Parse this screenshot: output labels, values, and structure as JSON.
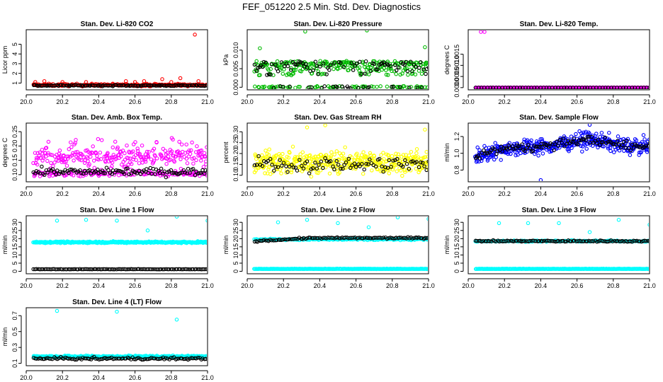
{
  "figure": {
    "title": "FEF_051220  2.5 Min. Std. Dev. Diagnostics"
  },
  "chart_data": [
    {
      "type": "scatter",
      "title": "Stan. Dev. Li-820 CO2",
      "ylabel": "Licor ppm",
      "xlim": [
        20.0,
        21.0
      ],
      "xticks": [
        "20.0",
        "20.2",
        "20.4",
        "20.6",
        "20.8",
        "21.0"
      ],
      "ylim": [
        0.3,
        6.5
      ],
      "yticks": [
        {
          "v": 1,
          "label": "1"
        },
        {
          "v": 2,
          "label": "2"
        },
        {
          "v": 3,
          "label": "3"
        },
        {
          "v": 4,
          "label": "4"
        },
        {
          "v": 5,
          "label": "5"
        }
      ],
      "series": [
        {
          "name": "colored",
          "color": "#ff0000",
          "n": 260,
          "base": 0.8,
          "spread": 0.12,
          "spikes": [
            [
              20.05,
              1.1
            ],
            [
              20.1,
              1.2
            ],
            [
              20.2,
              1.1
            ],
            [
              20.33,
              1.1
            ],
            [
              20.55,
              1.2
            ],
            [
              20.6,
              1.1
            ],
            [
              20.65,
              1.2
            ],
            [
              20.75,
              1.4
            ],
            [
              20.8,
              1.1
            ],
            [
              20.85,
              1.5
            ],
            [
              20.93,
              6.0
            ],
            [
              20.95,
              1.2
            ]
          ]
        },
        {
          "name": "black",
          "color": "#000000",
          "n": 120,
          "base": 0.75,
          "spread": 0.06,
          "spikes": []
        }
      ]
    },
    {
      "type": "scatter",
      "title": "Stan. Dev. Li-820 Pressure",
      "ylabel": "kPa",
      "xlim": [
        20.0,
        21.0
      ],
      "xticks": [
        "20.0",
        "20.2",
        "20.4",
        "20.6",
        "20.8",
        "21.0"
      ],
      "ylim": [
        -0.0007,
        0.0155
      ],
      "yticks": [
        {
          "v": 0.0,
          "label": "0.000"
        },
        {
          "v": 0.005,
          "label": "0.005"
        },
        {
          "v": 0.01,
          "label": "0.010"
        }
      ],
      "series": [
        {
          "name": "colored",
          "color": "#00bb00",
          "n": 330,
          "base": "pressure",
          "spread": 0,
          "spikes": [
            [
              20.07,
              0.0105
            ],
            [
              20.32,
              0.015
            ],
            [
              20.66,
              0.0153
            ],
            [
              20.98,
              0.0108
            ]
          ]
        },
        {
          "name": "black",
          "color": "#000000",
          "n": 110,
          "base": "pressure",
          "spread": 0,
          "spikes": []
        }
      ]
    },
    {
      "type": "scatter",
      "title": "Stan. Dev. Li-820 Temp.",
      "ylabel": "degrees C",
      "xlim": [
        20.0,
        21.0
      ],
      "xticks": [
        "20.0",
        "20.2",
        "20.4",
        "20.6",
        "20.8",
        "21.0"
      ],
      "ylim": [
        -0.0001,
        0.0026
      ],
      "yticks": [
        {
          "v": 0.0,
          "label": "0.0000"
        },
        {
          "v": 0.0005,
          "label": "0.0005"
        },
        {
          "v": 0.001,
          "label": "0.0010"
        },
        {
          "v": 0.0015,
          "label": "0.0015"
        }
      ],
      "series": [
        {
          "name": "colored",
          "color": "#ff00ff",
          "n": 300,
          "base": 0.0,
          "spread": 0.0,
          "spikes": [
            [
              20.07,
              0.0025
            ],
            [
              20.09,
              0.0025
            ]
          ]
        },
        {
          "name": "black",
          "color": "#000000",
          "n": 60,
          "base": 0.0,
          "spread": 0.0,
          "spikes": []
        }
      ]
    },
    {
      "type": "scatter",
      "title": "Stan. Dev. Amb. Box Temp.",
      "ylabel": "degrees C",
      "xlim": [
        20.0,
        21.0
      ],
      "xticks": [
        "20.0",
        "20.2",
        "20.4",
        "20.6",
        "20.8",
        "21.0"
      ],
      "ylim": [
        0.075,
        0.28
      ],
      "yticks": [
        {
          "v": 0.1,
          "label": "0.10"
        },
        {
          "v": 0.15,
          "label": "0.15"
        },
        {
          "v": 0.2,
          "label": "0.20"
        },
        {
          "v": 0.25,
          "label": "0.25"
        }
      ],
      "series": [
        {
          "name": "colored",
          "color": "#ff00ff",
          "n": 420,
          "base": "bimodal",
          "spread": 0,
          "spikes": []
        },
        {
          "name": "black",
          "color": "#000000",
          "n": 110,
          "base": 0.11,
          "spread": 0.012,
          "spikes": []
        }
      ]
    },
    {
      "type": "scatter",
      "title": "Stan. Dev. Gas Stream RH",
      "ylabel": "percent",
      "xlim": [
        20.0,
        21.0
      ],
      "xticks": [
        "20.0",
        "20.2",
        "20.4",
        "20.6",
        "20.8",
        "21.0"
      ],
      "ylim": [
        0.07,
        0.34
      ],
      "yticks": [
        {
          "v": 0.1,
          "label": "0.10"
        },
        {
          "v": 0.15,
          "label": "0.15"
        },
        {
          "v": 0.2,
          "label": "0.20"
        },
        {
          "v": 0.25,
          "label": "0.25"
        },
        {
          "v": 0.3,
          "label": "0.30"
        }
      ],
      "series": [
        {
          "name": "colored",
          "color": "#ffff00",
          "n": 420,
          "base": 0.16,
          "spread": 0.05,
          "spikes": [
            [
              20.33,
              0.32
            ],
            [
              20.43,
              0.33
            ],
            [
              20.98,
              0.31
            ]
          ]
        },
        {
          "name": "black",
          "color": "#000000",
          "n": 90,
          "base": 0.15,
          "spread": 0.035,
          "spikes": []
        }
      ]
    },
    {
      "type": "scatter",
      "title": "Stan. Dev. Sample Flow",
      "ylabel": "ml/min",
      "xlim": [
        20.0,
        21.0
      ],
      "xticks": [
        "20.0",
        "20.2",
        "20.4",
        "20.6",
        "20.8",
        "21.0"
      ],
      "ylim": [
        0.66,
        1.36
      ],
      "yticks": [
        {
          "v": 0.8,
          "label": "0.8"
        },
        {
          "v": 1.0,
          "label": "1.0"
        },
        {
          "v": 1.2,
          "label": "1.2"
        }
      ],
      "series": [
        {
          "name": "colored",
          "color": "#0000ff",
          "n": 420,
          "base": "flowtrend",
          "spread": 0.09,
          "spikes": [
            [
              20.4,
              0.68
            ],
            [
              20.67,
              1.34
            ]
          ]
        },
        {
          "name": "black",
          "color": "#000000",
          "n": 110,
          "base": "flowtrend",
          "spread": 0.05,
          "spikes": []
        }
      ]
    },
    {
      "type": "scatter",
      "title": "Stan. Dev. Line 1 Flow",
      "ylabel": "ml/min",
      "xlim": [
        20.0,
        21.0
      ],
      "xticks": [
        "20.0",
        "20.2",
        "20.4",
        "20.6",
        "20.8",
        "21.0"
      ],
      "ylim": [
        -1.5,
        34
      ],
      "yticks": [
        {
          "v": 0,
          "label": "0"
        },
        {
          "v": 5,
          "label": "5"
        },
        {
          "v": 10,
          "label": "10"
        },
        {
          "v": 15,
          "label": "15"
        },
        {
          "v": 20,
          "label": "20"
        },
        {
          "v": 25,
          "label": "25"
        },
        {
          "v": 30,
          "label": "30"
        }
      ],
      "series": [
        {
          "name": "colored",
          "color": "#00ffff",
          "n": 330,
          "base": 17.8,
          "spread": 0.5,
          "spikes": [
            [
              20.17,
              31
            ],
            [
              20.33,
              31.5
            ],
            [
              20.5,
              31
            ],
            [
              20.67,
              25
            ],
            [
              20.83,
              33.5
            ],
            [
              21.0,
              31
            ]
          ]
        },
        {
          "name": "black",
          "color": "#000000",
          "n": 110,
          "base": 1.3,
          "spread": 0.1,
          "spikes": []
        }
      ]
    },
    {
      "type": "scatter",
      "title": "Stan. Dev. Line 2 Flow",
      "ylabel": "ml/min",
      "xlim": [
        20.0,
        21.0
      ],
      "xticks": [
        "20.0",
        "20.2",
        "20.4",
        "20.6",
        "20.8",
        "21.0"
      ],
      "ylim": [
        -1.5,
        34
      ],
      "yticks": [
        {
          "v": 0,
          "label": "0"
        },
        {
          "v": 5,
          "label": "5"
        },
        {
          "v": 10,
          "label": "10"
        },
        {
          "v": 15,
          "label": "15"
        },
        {
          "v": 20,
          "label": "20"
        },
        {
          "v": 25,
          "label": "25"
        },
        {
          "v": 30,
          "label": "30"
        }
      ],
      "series": [
        {
          "name": "colored",
          "color": "#00ffff",
          "n": 330,
          "base": 1.5,
          "spread": 0.1,
          "spikes": [
            [
              20.17,
              30
            ],
            [
              20.33,
              31.5
            ],
            [
              20.5,
              29.5
            ],
            [
              20.67,
              27
            ],
            [
              20.83,
              33
            ],
            [
              21.0,
              32
            ]
          ]
        },
        {
          "name": "cyan-band",
          "color": "#00ffff",
          "n": 150,
          "base": 19.5,
          "spread": 0.5,
          "spikes": []
        },
        {
          "name": "black",
          "color": "#000000",
          "n": 110,
          "base": "line2trend",
          "spread": 0.5,
          "spikes": []
        }
      ]
    },
    {
      "type": "scatter",
      "title": "Stan. Dev. Line 3 Flow",
      "ylabel": "ml/min",
      "xlim": [
        20.0,
        21.0
      ],
      "xticks": [
        "20.0",
        "20.2",
        "20.4",
        "20.6",
        "20.8",
        "21.0"
      ],
      "ylim": [
        -1.5,
        34
      ],
      "yticks": [
        {
          "v": 0,
          "label": "0"
        },
        {
          "v": 5,
          "label": "5"
        },
        {
          "v": 10,
          "label": "10"
        },
        {
          "v": 15,
          "label": "15"
        },
        {
          "v": 20,
          "label": "20"
        },
        {
          "v": 25,
          "label": "25"
        },
        {
          "v": 30,
          "label": "30"
        }
      ],
      "series": [
        {
          "name": "colored",
          "color": "#00ffff",
          "n": 330,
          "base": 1.5,
          "spread": 0.1,
          "spikes": [
            [
              20.17,
              29.5
            ],
            [
              20.33,
              29.5
            ],
            [
              20.5,
              29.5
            ],
            [
              20.67,
              24
            ],
            [
              20.83,
              31.5
            ],
            [
              21.0,
              28.5
            ]
          ]
        },
        {
          "name": "cyan-band",
          "color": "#00ffff",
          "n": 150,
          "base": 18.5,
          "spread": 0.4,
          "spikes": []
        },
        {
          "name": "black",
          "color": "#000000",
          "n": 110,
          "base": 18.5,
          "spread": 0.4,
          "spikes": []
        }
      ]
    },
    {
      "type": "scatter",
      "title": "Stan. Dev. Line 4 (LT) Flow",
      "ylabel": "ml/min",
      "xlim": [
        20.0,
        21.0
      ],
      "xticks": [
        "20.0",
        "20.2",
        "20.4",
        "20.6",
        "20.8",
        "21.0"
      ],
      "ylim": [
        0.07,
        0.8
      ],
      "yticks": [
        {
          "v": 0.1,
          "label": "0.1"
        },
        {
          "v": 0.3,
          "label": "0.3"
        },
        {
          "v": 0.5,
          "label": "0.5"
        },
        {
          "v": 0.7,
          "label": "0.7"
        }
      ],
      "series": [
        {
          "name": "colored",
          "color": "#00ffff",
          "n": 330,
          "base": 0.185,
          "spread": 0.012,
          "spikes": [
            [
              20.17,
              0.76
            ],
            [
              20.5,
              0.75
            ],
            [
              20.83,
              0.65
            ]
          ]
        },
        {
          "name": "black",
          "color": "#000000",
          "n": 110,
          "base": 0.16,
          "spread": 0.015,
          "spikes": []
        }
      ]
    }
  ]
}
